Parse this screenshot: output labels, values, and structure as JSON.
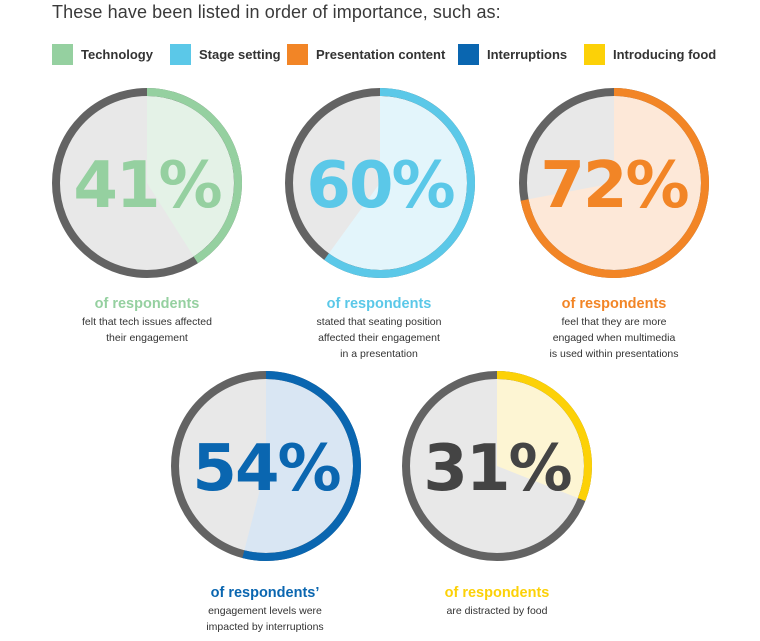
{
  "intro": "These have been listed in order of importance, such as:",
  "legend": [
    {
      "label": "Technology",
      "color": "#95d0a0"
    },
    {
      "label": "Stage setting",
      "color": "#5bc8e8"
    },
    {
      "label": "Presentation content",
      "color": "#f28526"
    },
    {
      "label": "Interruptions",
      "color": "#0a66b0"
    },
    {
      "label": "Introducing food",
      "color": "#fcd107"
    }
  ],
  "chart_data": [
    {
      "type": "pie",
      "category": "Technology",
      "value": 41,
      "value_label": "41%",
      "color": "#95d0a0",
      "light": "#e4f2e7",
      "number_color": "#95d0a0"
    },
    {
      "type": "pie",
      "category": "Stage setting",
      "value": 60,
      "value_label": "60%",
      "color": "#5bc8e8",
      "light": "#e3f5fb",
      "number_color": "#5bc8e8"
    },
    {
      "type": "pie",
      "category": "Presentation content",
      "value": 72,
      "value_label": "72%",
      "color": "#f28526",
      "light": "#fde8d8",
      "number_color": "#f28526"
    },
    {
      "type": "pie",
      "category": "Interruptions",
      "value": 54,
      "value_label": "54%",
      "color": "#0a66b0",
      "light": "#d9e6f3",
      "number_color": "#0a66b0"
    },
    {
      "type": "pie",
      "category": "Introducing food",
      "value": 31,
      "value_label": "31%",
      "color": "#fcd107",
      "light": "#fdf5d3",
      "number_color": "#444444"
    }
  ],
  "captions": [
    {
      "title": "of respondents",
      "desc": [
        "felt that tech issues affected",
        "their engagement"
      ]
    },
    {
      "title": "of respondents",
      "desc": [
        "stated that seating position",
        "affected their engagement",
        "in a presentation"
      ]
    },
    {
      "title": "of respondents",
      "desc": [
        "feel that they are more",
        "engaged when multimedia",
        "is used within presentations"
      ]
    },
    {
      "title": "of respondents’",
      "desc": [
        "engagement levels were",
        "impacted by interruptions"
      ]
    },
    {
      "title": "of respondents",
      "desc": [
        "are distracted by food"
      ]
    }
  ],
  "colors": {
    "base_ring": "#636363",
    "base_fill": "#e8e8e8"
  }
}
